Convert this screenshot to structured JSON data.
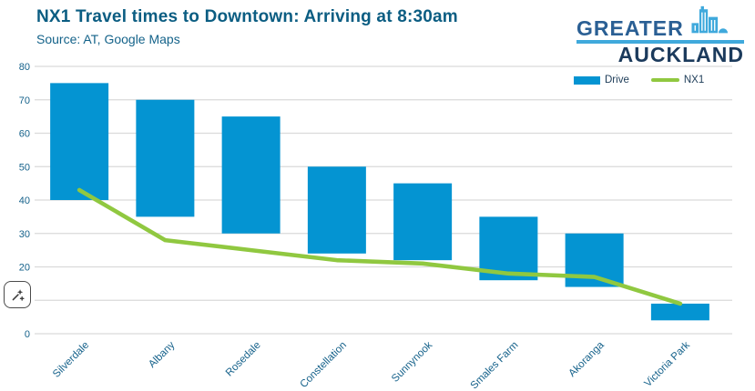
{
  "header": {
    "title": "NX1 Travel times to Downtown: Arriving at 8:30am",
    "subtitle": "Source: AT, Google Maps"
  },
  "logo": {
    "line1": "GREATER",
    "line2": "AUCKLAND",
    "icon": "city-buildings-icon"
  },
  "overlay": {
    "sparkle_button_icon": "sparkle-pen-icon"
  },
  "colors": {
    "title_text": "#0b5d82",
    "axis_text": "#16628b",
    "legend_text": "#1d3c58",
    "grid": "#dadada",
    "bar_blue": "#0494d2",
    "line_green": "#90c840",
    "logo_blue": "#2a5f94",
    "logo_navy": "#1b3a5c",
    "logo_light_blue": "#3fa9dc"
  },
  "chart_data": {
    "type": "bar",
    "subtype": "floating-range-bars-with-line",
    "title": "NX1 Travel times to Downtown: Arriving at 8:30am",
    "subtitle": "Source: AT, Google Maps",
    "xlabel": "",
    "ylabel": "",
    "ylim": [
      0,
      80
    ],
    "yticks": [
      0,
      10,
      20,
      30,
      40,
      50,
      60,
      70,
      80
    ],
    "grid": true,
    "legend_position": "top-right",
    "categories": [
      "Silverdale",
      "Albany",
      "Rosedale",
      "Constellation",
      "Sunnynook",
      "Smales Farm",
      "Akoranga",
      "Victoria Park"
    ],
    "series": [
      {
        "name": "Drive",
        "type": "range_bar",
        "color": "#0494d2",
        "low": [
          40,
          35,
          30,
          24,
          22,
          16,
          14,
          4
        ],
        "high": [
          75,
          70,
          65,
          50,
          45,
          35,
          30,
          9
        ]
      },
      {
        "name": "NX1",
        "type": "line",
        "color": "#90c840",
        "values": [
          43,
          28,
          25,
          22,
          21,
          18,
          17,
          9
        ]
      }
    ]
  }
}
